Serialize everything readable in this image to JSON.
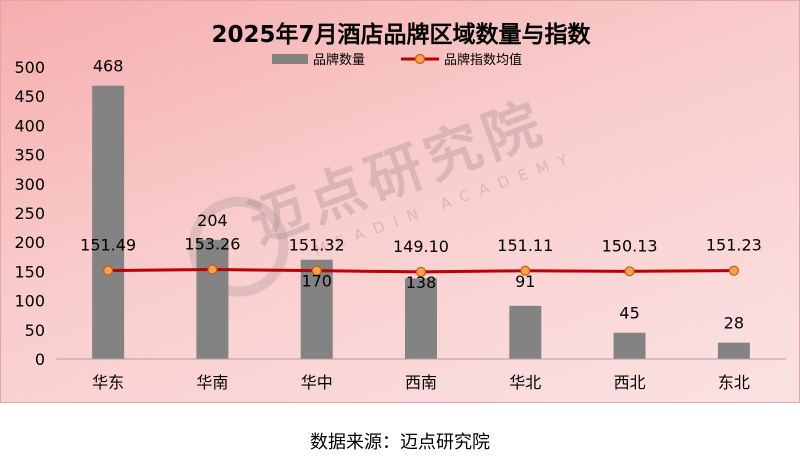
{
  "chart_data": {
    "type": "bar+line",
    "title": "2025年7月酒店品牌区域数量与指数",
    "categories": [
      "华东",
      "华南",
      "华中",
      "西南",
      "华北",
      "西北",
      "东北"
    ],
    "series": [
      {
        "name": "品牌数量",
        "type": "bar",
        "values": [
          468,
          204,
          170,
          138,
          91,
          45,
          28
        ]
      },
      {
        "name": "品牌指数均值",
        "type": "line",
        "values": [
          151.49,
          153.26,
          151.32,
          149.1,
          151.11,
          150.13,
          151.23
        ]
      }
    ],
    "value_labels": {
      "bar": [
        "468",
        "204",
        "170",
        "138",
        "91",
        "45",
        "28"
      ],
      "line": [
        "151.49",
        "153.26",
        "151.32",
        "149.10",
        "151.11",
        "150.13",
        "151.23"
      ]
    },
    "ylim": [
      0,
      500
    ],
    "yticks": [
      0,
      50,
      100,
      150,
      200,
      250,
      300,
      350,
      400,
      450,
      500
    ],
    "legend_position": "top-center",
    "grid": false
  },
  "colors": {
    "bar": "#838383",
    "line": "#c00000",
    "marker_fill": "#f6a44a",
    "marker_stroke": "#c55a11"
  },
  "watermark": {
    "main": "迈点研究院",
    "sub": "MEADIN ACADEMY"
  },
  "source": "数据来源：迈点研究院"
}
